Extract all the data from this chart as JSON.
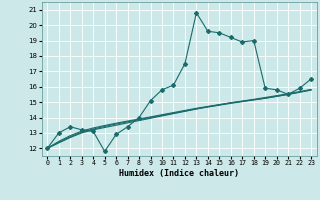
{
  "title": "",
  "xlabel": "Humidex (Indice chaleur)",
  "background_color": "#cce8e8",
  "line_color": "#1a6b6b",
  "grid_color": "#ffffff",
  "xlim": [
    -0.5,
    23.5
  ],
  "ylim": [
    11.5,
    21.5
  ],
  "yticks": [
    12,
    13,
    14,
    15,
    16,
    17,
    18,
    19,
    20,
    21
  ],
  "xticks": [
    0,
    1,
    2,
    3,
    4,
    5,
    6,
    7,
    8,
    9,
    10,
    11,
    12,
    13,
    14,
    15,
    16,
    17,
    18,
    19,
    20,
    21,
    22,
    23
  ],
  "series_main": [
    12.0,
    13.0,
    13.4,
    13.2,
    13.1,
    11.8,
    12.9,
    13.4,
    14.0,
    15.1,
    15.8,
    16.1,
    17.5,
    20.8,
    19.6,
    19.5,
    19.2,
    18.9,
    19.0,
    15.9,
    15.8,
    15.5,
    15.9,
    16.5
  ],
  "series_lines": [
    [
      12.0,
      12.35,
      12.7,
      13.0,
      13.2,
      13.35,
      13.5,
      13.65,
      13.8,
      13.95,
      14.1,
      14.25,
      14.4,
      14.55,
      14.7,
      14.82,
      14.95,
      15.05,
      15.15,
      15.25,
      15.38,
      15.5,
      15.65,
      15.8
    ],
    [
      12.0,
      12.4,
      12.75,
      13.05,
      13.25,
      13.42,
      13.58,
      13.72,
      13.86,
      14.0,
      14.15,
      14.28,
      14.42,
      14.56,
      14.68,
      14.8,
      14.92,
      15.03,
      15.14,
      15.25,
      15.37,
      15.5,
      15.64,
      15.78
    ],
    [
      12.0,
      12.45,
      12.82,
      13.12,
      13.32,
      13.48,
      13.63,
      13.77,
      13.9,
      14.04,
      14.18,
      14.32,
      14.46,
      14.6,
      14.72,
      14.84,
      14.96,
      15.07,
      15.18,
      15.3,
      15.42,
      15.55,
      15.68,
      15.82
    ]
  ]
}
